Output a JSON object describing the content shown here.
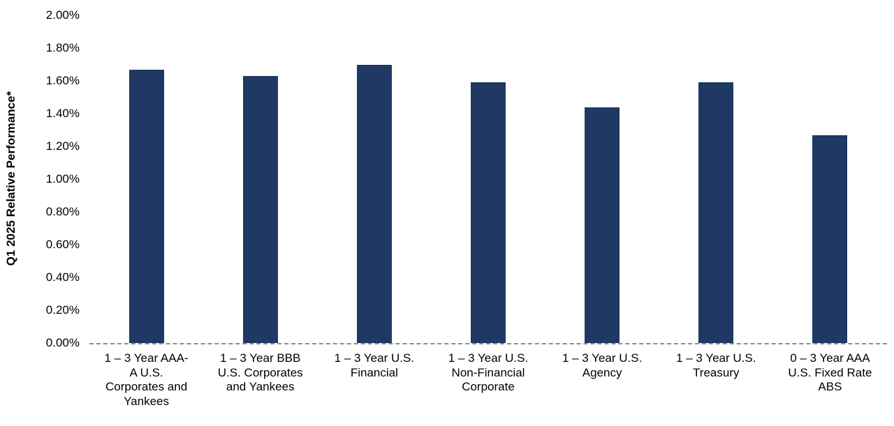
{
  "chart_data": {
    "type": "bar",
    "title": "",
    "xlabel": "",
    "ylabel": "Q1 2025 Relative Performance*",
    "unit": "%",
    "ylim": [
      0,
      2.0
    ],
    "grid": false,
    "legend": false,
    "bar_color": "#1F3864",
    "baseline_color": "#8c8c8c",
    "y_ticks": [
      {
        "value": 0.0,
        "label": "0.00%"
      },
      {
        "value": 0.2,
        "label": "0.20%"
      },
      {
        "value": 0.4,
        "label": "0.40%"
      },
      {
        "value": 0.6,
        "label": "0.60%"
      },
      {
        "value": 0.8,
        "label": "0.80%"
      },
      {
        "value": 1.0,
        "label": "1.00%"
      },
      {
        "value": 1.2,
        "label": "1.20%"
      },
      {
        "value": 1.4,
        "label": "1.40%"
      },
      {
        "value": 1.6,
        "label": "1.60%"
      },
      {
        "value": 1.8,
        "label": "1.80%"
      },
      {
        "value": 2.0,
        "label": "2.00%"
      }
    ],
    "categories": [
      "1 – 3 Year AAA-\nA U.S.\nCorporates and\nYankees",
      "1 – 3 Year BBB\nU.S. Corporates\nand Yankees",
      "1 – 3 Year U.S.\nFinancial",
      "1 – 3 Year U.S.\nNon-Financial\nCorporate",
      "1 – 3 Year U.S.\nAgency",
      "1 – 3 Year U.S.\nTreasury",
      "0 – 3 Year AAA\nU.S. Fixed Rate\nABS"
    ],
    "values": [
      1.67,
      1.63,
      1.7,
      1.59,
      1.44,
      1.59,
      1.27
    ]
  }
}
